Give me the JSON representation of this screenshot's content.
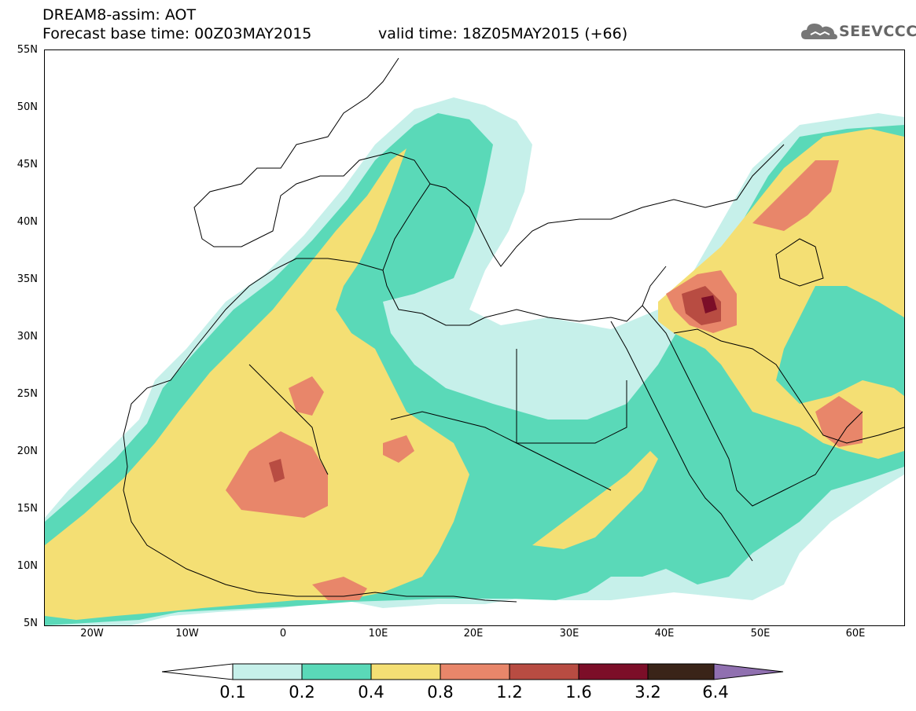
{
  "header": {
    "title": "DREAM8-assim: AOT",
    "base_time": "Forecast base time: 00Z03MAY2015",
    "valid_time": "valid time: 18Z05MAY2015 (+66)"
  },
  "logo": {
    "text": "SEEVCCC",
    "icon": "cloud-icon"
  },
  "lat_labels": [
    "55N",
    "50N",
    "45N",
    "40N",
    "35N",
    "30N",
    "25N",
    "20N",
    "15N",
    "10N",
    "5N"
  ],
  "lon_labels": [
    "20W",
    "10W",
    "0",
    "10E",
    "20E",
    "30E",
    "40E",
    "50E",
    "60E"
  ],
  "colorbar": {
    "labels": [
      "0.1",
      "0.2",
      "0.4",
      "0.8",
      "1.2",
      "1.6",
      "3.2",
      "6.4"
    ],
    "colors": [
      "#ffffff",
      "#c6f0ea",
      "#5ad9b8",
      "#f4df74",
      "#e8866a",
      "#b84c42",
      "#7c0e28",
      "#3a2418",
      "#9070b0"
    ]
  },
  "map_colors": {
    "c1": "#c6f0ea",
    "c2": "#5ad9b8",
    "c3": "#f4df74",
    "c4": "#e8866a",
    "c5": "#b84c42",
    "c6": "#7c0e28"
  }
}
